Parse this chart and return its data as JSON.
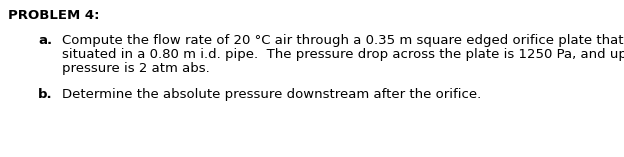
{
  "title": "PROBLEM 4:",
  "line_a_label": "a.",
  "line_a_text1": "Compute the flow rate of 20 °C air through a 0.35 m square edged orifice plate that is",
  "line_a_text2": "situated in a 0.80 m i.d. pipe.  The pressure drop across the plate is 1250 Pa, and upstream",
  "line_a_text3": "pressure is 2 atm abs.",
  "line_b_label": "b.",
  "line_b_text": "Determine the absolute pressure downstream after the orifice.",
  "bg_color": "#ffffff",
  "text_color": "#000000",
  "title_fontsize": 9.5,
  "body_fontsize": 9.5,
  "font_family": "Arial"
}
